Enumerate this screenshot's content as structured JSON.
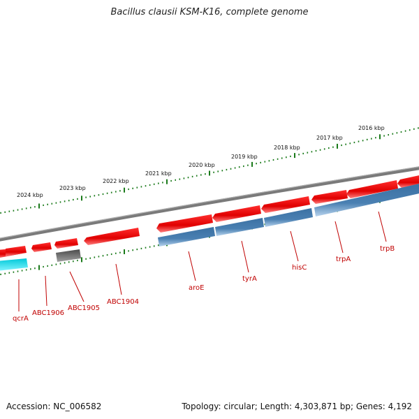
{
  "title": "Bacillus clausii KSM-K16, complete genome",
  "footer": {
    "accession": "Accession: NC_006582",
    "topology": "Topology: circular; Length: 4,303,871 bp; Genes: 4,192"
  },
  "kbp_labels": [
    "2024 kbp",
    "2023 kbp",
    "2022 kbp",
    "2021 kbp",
    "2020 kbp",
    "2019 kbp",
    "2018 kbp",
    "2017 kbp",
    "2016 kbp"
  ],
  "gene_labels": [
    "qcrA",
    "ABC1906",
    "ABC1905",
    "ABC1904",
    "aroE",
    "tyrA",
    "hisC",
    "trpA",
    "trpB"
  ],
  "colors": {
    "forward_gene": "#ee0000",
    "reverse_gene": "#4a7fb0",
    "cyan_gene": "#00e0ee",
    "gray_gene": "#555555",
    "backbone": "#808080",
    "tick": "#1a7a1a",
    "label": "#c00000"
  }
}
